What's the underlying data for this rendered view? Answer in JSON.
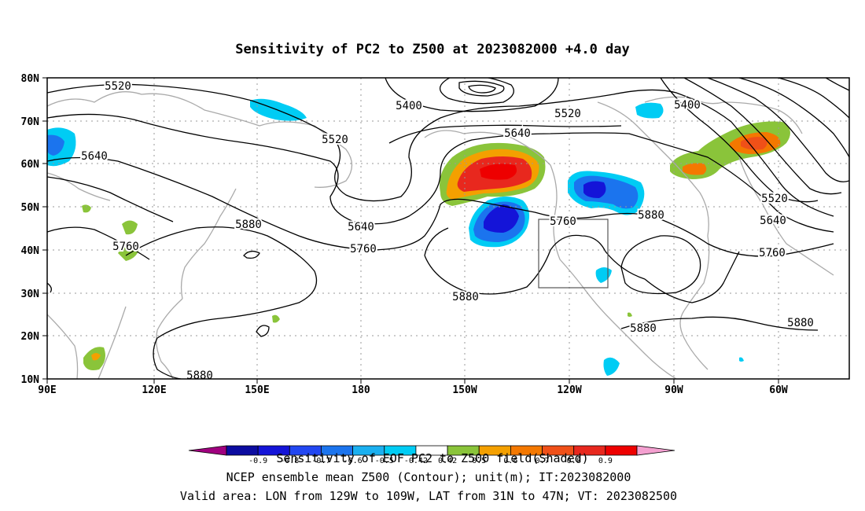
{
  "title": "Sensitivity of PC2 to Z500 at 2023082000 +4.0 day",
  "x_axis": {
    "tick_labels": [
      "90E",
      "120E",
      "150E",
      "180",
      "150W",
      "120W",
      "90W",
      "60W"
    ]
  },
  "y_axis": {
    "tick_labels": [
      "10N",
      "20N",
      "30N",
      "40N",
      "50N",
      "60N",
      "70N",
      "80N"
    ]
  },
  "contour_labels": [
    {
      "text": "5520",
      "id": "c5520-a"
    },
    {
      "text": "5400",
      "id": "c5400-a"
    },
    {
      "text": "5520",
      "id": "c5520-b"
    },
    {
      "text": "5520",
      "id": "c5520-c"
    },
    {
      "text": "5400",
      "id": "c5400-b"
    },
    {
      "text": "5640",
      "id": "c5640-a"
    },
    {
      "text": "5640",
      "id": "c5640-b"
    },
    {
      "text": "5640",
      "id": "c5640-c"
    },
    {
      "text": "5520",
      "id": "c5520-d"
    },
    {
      "text": "5640",
      "id": "c5640-d"
    },
    {
      "text": "5880",
      "id": "c5880-a"
    },
    {
      "text": "5760",
      "id": "c5760-a"
    },
    {
      "text": "5760",
      "id": "c5760-b"
    },
    {
      "text": "5760",
      "id": "c5760-c"
    },
    {
      "text": "5880",
      "id": "c5880-b"
    },
    {
      "text": "5760",
      "id": "c5760-d"
    },
    {
      "text": "5880",
      "id": "c5880-c"
    },
    {
      "text": "5880",
      "id": "c5880-d"
    },
    {
      "text": "5880",
      "id": "c5880-e"
    },
    {
      "text": "5880",
      "id": "c5880-f"
    }
  ],
  "colorbar": {
    "colors": [
      "#a0007f",
      "#0c0ca0",
      "#1414d8",
      "#2247f2",
      "#1b74ee",
      "#1bb0f0",
      "#00ccf4",
      "#ffffff",
      "#8ac43a",
      "#f4a000",
      "#f47800",
      "#f05018",
      "#e8281e",
      "#ee0000",
      "#f4a0d0"
    ],
    "labels": [
      "-0.9",
      "-0.8",
      "-0.7",
      "-0.6",
      "-0.5",
      "-0.42",
      "0.42",
      "0.5",
      "0.6",
      "0.7",
      "0.8",
      "0.9"
    ]
  },
  "footer": {
    "line1": "Sensitivity of EOF PC2 to Z500 field(Shaded)",
    "line2": "NCEP ensemble mean Z500 (Contour); unit(m); IT:2023082000",
    "line3": "Valid area: LON from 129W to 109W, LAT from 31N to 47N; VT: 2023082500"
  }
}
